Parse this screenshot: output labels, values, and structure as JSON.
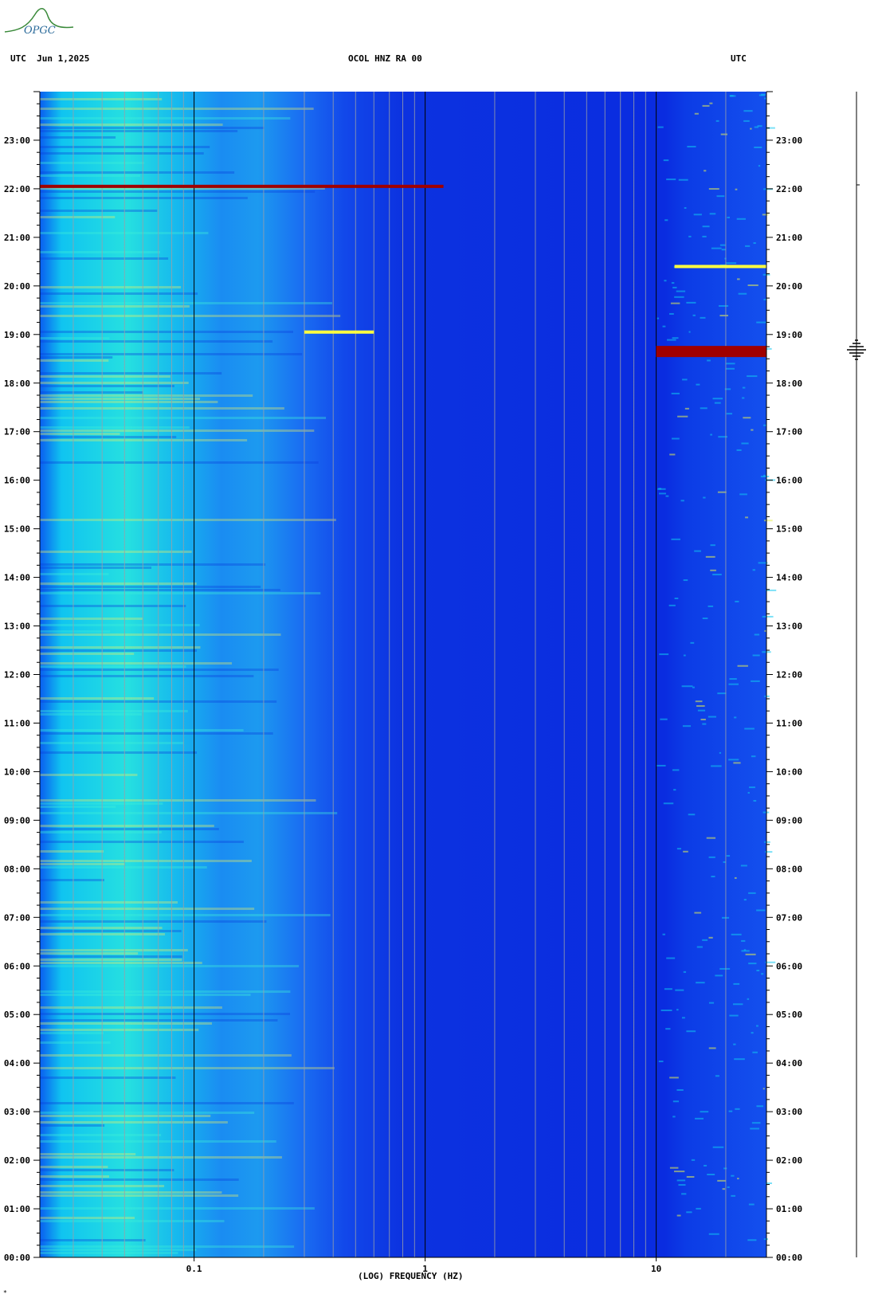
{
  "header": {
    "logo_text": "OPGC",
    "left_label": "UTC  Jun 1,2025",
    "center_label": "OCOL HNZ RA 00",
    "right_label": "UTC"
  },
  "chart_data": {
    "type": "heatmap",
    "title": "OCOL HNZ RA 00",
    "xlabel": "(LOG) FREQUENCY (HZ)",
    "x_scale": "log",
    "xlim": [
      0.0215,
      30
    ],
    "x_ticks": [
      {
        "value": 0.1,
        "label": "0.1"
      },
      {
        "value": 1,
        "label": "1"
      },
      {
        "value": 10,
        "label": "10"
      }
    ],
    "ylabel": "UTC",
    "ylim": [
      0,
      24
    ],
    "y_ticks": [
      "00:00",
      "01:00",
      "02:00",
      "03:00",
      "04:00",
      "05:00",
      "06:00",
      "07:00",
      "08:00",
      "09:00",
      "10:00",
      "11:00",
      "12:00",
      "13:00",
      "14:00",
      "15:00",
      "16:00",
      "17:00",
      "18:00",
      "19:00",
      "20:00",
      "21:00",
      "22:00",
      "23:00"
    ],
    "colors": {
      "low": "#0a1ee0",
      "mid": "#00c8ff",
      "high": "#ffff00",
      "max": "#a00000"
    },
    "events": [
      {
        "time_h": 22.05,
        "f_min": 0.0215,
        "f_max": 1.2,
        "intensity": "max"
      },
      {
        "time_h": 19.05,
        "f_min": 0.3,
        "f_max": 0.6,
        "intensity": "high"
      },
      {
        "time_h": 18.65,
        "f_min": 10,
        "f_max": 30,
        "intensity": "max"
      },
      {
        "time_h": 20.4,
        "f_min": 12,
        "f_max": 30,
        "intensity": "high"
      }
    ]
  },
  "footer": {
    "corner_mark": "*"
  }
}
